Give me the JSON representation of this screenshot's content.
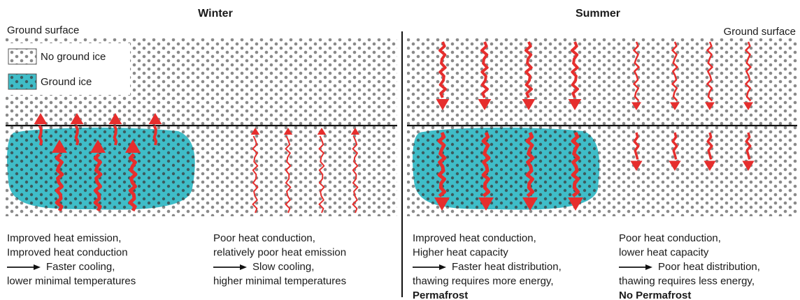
{
  "panels": [
    {
      "title": "Winter",
      "surface_label": "Ground surface",
      "columns": [
        {
          "lines": [
            "Improved heat emission,",
            "Improved heat conduction",
            "Faster cooling,",
            "lower minimal temperatures"
          ]
        },
        {
          "lines": [
            "Poor heat conduction,",
            "relatively poor heat emission",
            "Slow cooling,",
            "higher minimal temperatures"
          ]
        }
      ]
    },
    {
      "title": "Summer",
      "surface_label": "Ground surface",
      "columns": [
        {
          "lines": [
            "Improved heat conduction,",
            "Higher heat capacity",
            "Faster heat distribution,",
            "thawing requires more energy,",
            "Permafrost"
          ]
        },
        {
          "lines": [
            "Poor heat conduction,",
            "lower heat capacity",
            "Poor heat distribution,",
            "thawing requires less energy,",
            "No Permafrost"
          ]
        }
      ]
    }
  ],
  "legend": [
    "No ground ice",
    "Ground ice"
  ]
}
